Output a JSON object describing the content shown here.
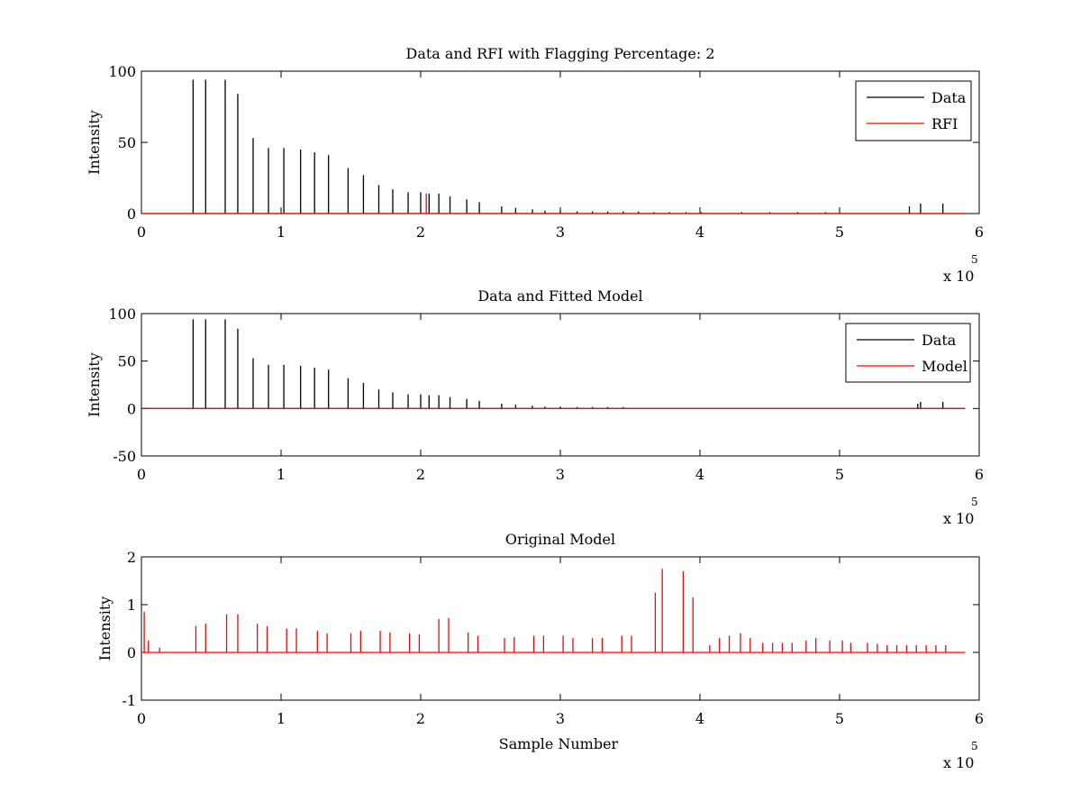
{
  "chart_data": [
    {
      "type": "line",
      "title": "Data and RFI with Flagging Percentage: 2",
      "xlabel": "",
      "ylabel": "Intensity",
      "xlim": [
        0,
        600000
      ],
      "ylim": [
        0,
        100
      ],
      "xticks": [
        0,
        100000,
        200000,
        300000,
        400000,
        500000,
        600000
      ],
      "xtick_labels": [
        "0",
        "1",
        "2",
        "3",
        "4",
        "5",
        "6"
      ],
      "yticks": [
        0,
        50,
        100
      ],
      "ytick_labels": [
        "0",
        "50",
        "100"
      ],
      "x_exponent": {
        "base": "x 10",
        "power": "5"
      },
      "legend_position": "top-right",
      "legend": [
        {
          "name": "Data",
          "color": "#000000"
        },
        {
          "name": "RFI",
          "color": "#ff0000"
        }
      ],
      "series": [
        {
          "name": "Data",
          "color": "#000000",
          "form": "spikes",
          "x": [
            37000,
            46000,
            60000,
            69000,
            80000,
            91000,
            102000,
            114000,
            124000,
            134000,
            148000,
            159000,
            170000,
            180000,
            191000,
            200000,
            206000,
            213000,
            221000,
            233000,
            242000,
            258000,
            268000,
            280000,
            289000,
            300000,
            312000,
            323000,
            334000,
            345000,
            356000,
            367000,
            378000,
            390000,
            401000,
            430000,
            450000,
            470000,
            490000,
            550000,
            558000,
            574000
          ],
          "y": [
            94,
            94,
            94,
            84,
            53,
            46,
            46,
            45,
            43,
            41,
            32,
            27,
            20,
            17,
            15,
            15,
            14,
            14,
            12,
            10,
            8,
            5,
            4,
            3,
            2,
            2,
            1.5,
            1.5,
            1.5,
            1.5,
            1.5,
            1,
            1,
            1,
            1,
            1,
            1,
            1,
            1,
            5,
            7,
            7
          ]
        },
        {
          "name": "RFI",
          "color": "#ff0000",
          "form": "spikes",
          "x": [
            204000
          ],
          "y": [
            14
          ]
        }
      ]
    },
    {
      "type": "line",
      "title": "Data and Fitted Model",
      "xlabel": "",
      "ylabel": "Intensity",
      "xlim": [
        0,
        600000
      ],
      "ylim": [
        -50,
        100
      ],
      "xticks": [
        0,
        100000,
        200000,
        300000,
        400000,
        500000,
        600000
      ],
      "xtick_labels": [
        "0",
        "1",
        "2",
        "3",
        "4",
        "5",
        "6"
      ],
      "yticks": [
        -50,
        0,
        50,
        100
      ],
      "ytick_labels": [
        "-50",
        "0",
        "50",
        "100"
      ],
      "x_exponent": {
        "base": "x 10",
        "power": "5"
      },
      "legend_position": "top-right",
      "legend": [
        {
          "name": "Data",
          "color": "#000000"
        },
        {
          "name": "Model",
          "color": "#ff0000"
        }
      ],
      "series": [
        {
          "name": "Data",
          "color": "#000000",
          "form": "spikes",
          "x": [
            37000,
            46000,
            60000,
            69000,
            80000,
            91000,
            102000,
            114000,
            124000,
            134000,
            148000,
            159000,
            170000,
            180000,
            191000,
            200000,
            206000,
            213000,
            221000,
            233000,
            242000,
            258000,
            268000,
            280000,
            289000,
            300000,
            312000,
            323000,
            334000,
            345000,
            556000,
            558000,
            574000
          ],
          "y": [
            94,
            94,
            94,
            84,
            53,
            46,
            46,
            45,
            43,
            41,
            32,
            27,
            20,
            17,
            15,
            15,
            14,
            14,
            12,
            10,
            8,
            5,
            4,
            3,
            2,
            2,
            1.5,
            1.5,
            1.5,
            1.5,
            5,
            7,
            7
          ]
        },
        {
          "name": "Model",
          "color": "#ff0000",
          "form": "line",
          "x": [
            0,
            590000
          ],
          "y": [
            0,
            0
          ]
        }
      ]
    },
    {
      "type": "line",
      "title": "Original Model",
      "xlabel": "Sample Number",
      "ylabel": "Intensity",
      "xlim": [
        0,
        600000
      ],
      "ylim": [
        -1,
        2
      ],
      "xticks": [
        0,
        100000,
        200000,
        300000,
        400000,
        500000,
        600000
      ],
      "xtick_labels": [
        "0",
        "1",
        "2",
        "3",
        "4",
        "5",
        "6"
      ],
      "yticks": [
        -1,
        0,
        1,
        2
      ],
      "ytick_labels": [
        "-1",
        "0",
        "1",
        "2"
      ],
      "x_exponent": {
        "base": "x 10",
        "power": "5"
      },
      "legend_position": "none",
      "legend": [],
      "series": [
        {
          "name": "",
          "color": "#ff0000",
          "form": "spikes",
          "x": [
            2000,
            5000,
            13000,
            39000,
            46000,
            61000,
            69000,
            83000,
            90000,
            104000,
            111000,
            126000,
            133000,
            150000,
            157000,
            171000,
            178000,
            192000,
            199000,
            213000,
            220000,
            234000,
            241000,
            260000,
            267000,
            281000,
            288000,
            302000,
            309000,
            323000,
            330000,
            344000,
            351000,
            368000,
            373000,
            388000,
            395000,
            407000,
            414000,
            421000,
            429000,
            436000,
            445000,
            452000,
            459000,
            466000,
            476000,
            483000,
            493000,
            502000,
            508000,
            520000,
            527000,
            534000,
            541000,
            548000,
            555000,
            562000,
            569000,
            576000
          ],
          "y": [
            0.85,
            0.25,
            0.1,
            0.55,
            0.6,
            0.8,
            0.8,
            0.6,
            0.55,
            0.5,
            0.5,
            0.45,
            0.4,
            0.4,
            0.45,
            0.45,
            0.42,
            0.4,
            0.38,
            0.7,
            0.72,
            0.42,
            0.35,
            0.3,
            0.32,
            0.35,
            0.35,
            0.35,
            0.3,
            0.3,
            0.3,
            0.35,
            0.35,
            1.25,
            1.75,
            1.7,
            1.15,
            0.15,
            0.3,
            0.35,
            0.4,
            0.3,
            0.2,
            0.2,
            0.2,
            0.2,
            0.25,
            0.3,
            0.25,
            0.25,
            0.2,
            0.2,
            0.18,
            0.15,
            0.15,
            0.15,
            0.15,
            0.15,
            0.15,
            0.15
          ]
        }
      ]
    }
  ]
}
